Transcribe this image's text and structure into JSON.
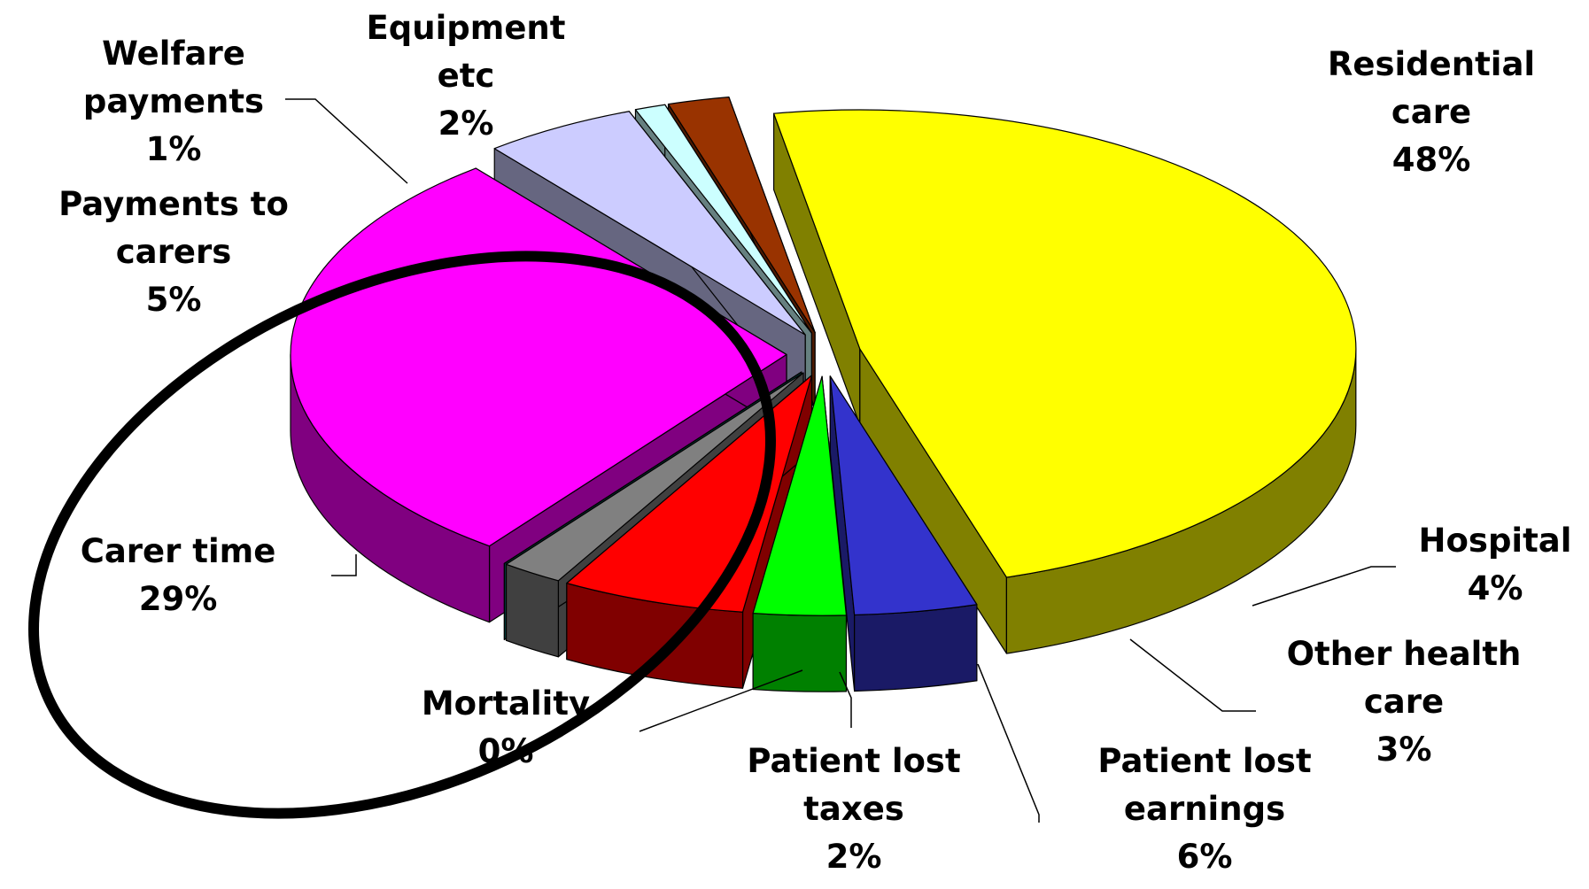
{
  "chart_data": {
    "type": "pie",
    "categories": [
      "Residential care",
      "Hospital",
      "Other health care",
      "Patient lost earnings",
      "Patient lost taxes",
      "Mortality",
      "Carer time",
      "Payments to carers",
      "Welfare payments",
      "Equipment etc"
    ],
    "values": [
      48,
      4,
      3,
      6,
      2,
      0,
      29,
      5,
      1,
      2
    ],
    "value_labels": [
      "48%",
      "4%",
      "3%",
      "6%",
      "2%",
      "0%",
      "29%",
      "5%",
      "1%",
      "2%"
    ],
    "colors": [
      "#ffff00",
      "#3333cc",
      "#00ff00",
      "#ff0000",
      "#808080",
      "#008080",
      "#ff00ff",
      "#ccccff",
      "#ccffff",
      "#993300"
    ],
    "exploded": true,
    "three_d": true
  }
}
